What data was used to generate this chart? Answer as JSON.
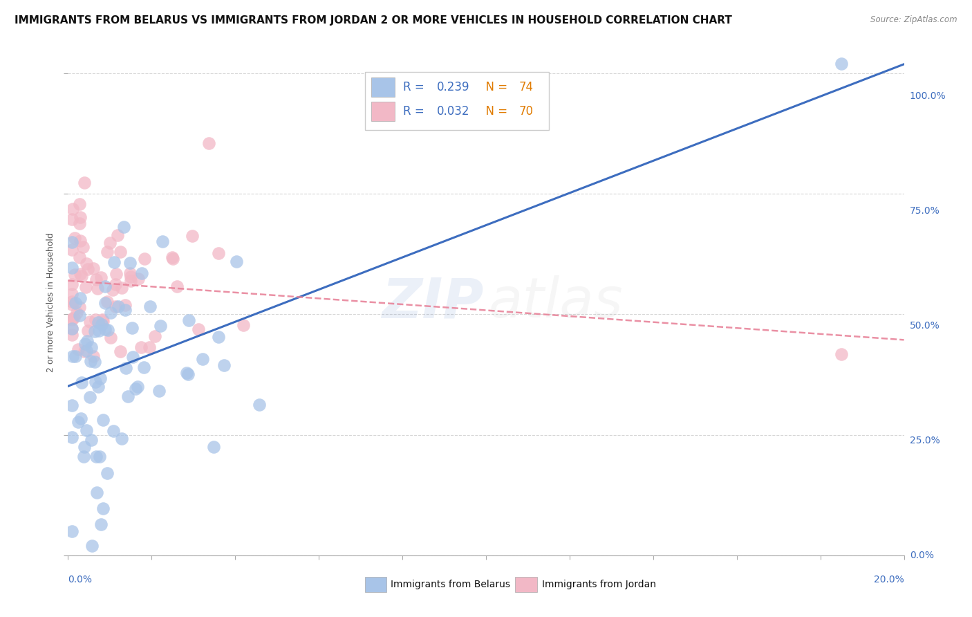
{
  "title": "IMMIGRANTS FROM BELARUS VS IMMIGRANTS FROM JORDAN 2 OR MORE VEHICLES IN HOUSEHOLD CORRELATION CHART",
  "source": "Source: ZipAtlas.com",
  "ylabel": "2 or more Vehicles in Household",
  "legend1_label": "Immigrants from Belarus",
  "legend2_label": "Immigrants from Jordan",
  "blue_color": "#a8c4e8",
  "pink_color": "#f2b8c6",
  "line_blue": "#3d6dbf",
  "line_pink": "#e8849a",
  "background": "#ffffff",
  "grid_color": "#cccccc",
  "xmin": 0.0,
  "xmax": 0.2,
  "ymin": 0.0,
  "ymax": 1.05,
  "title_fontsize": 11,
  "axis_label_fontsize": 9,
  "tick_fontsize": 10,
  "legend_fontsize": 12
}
